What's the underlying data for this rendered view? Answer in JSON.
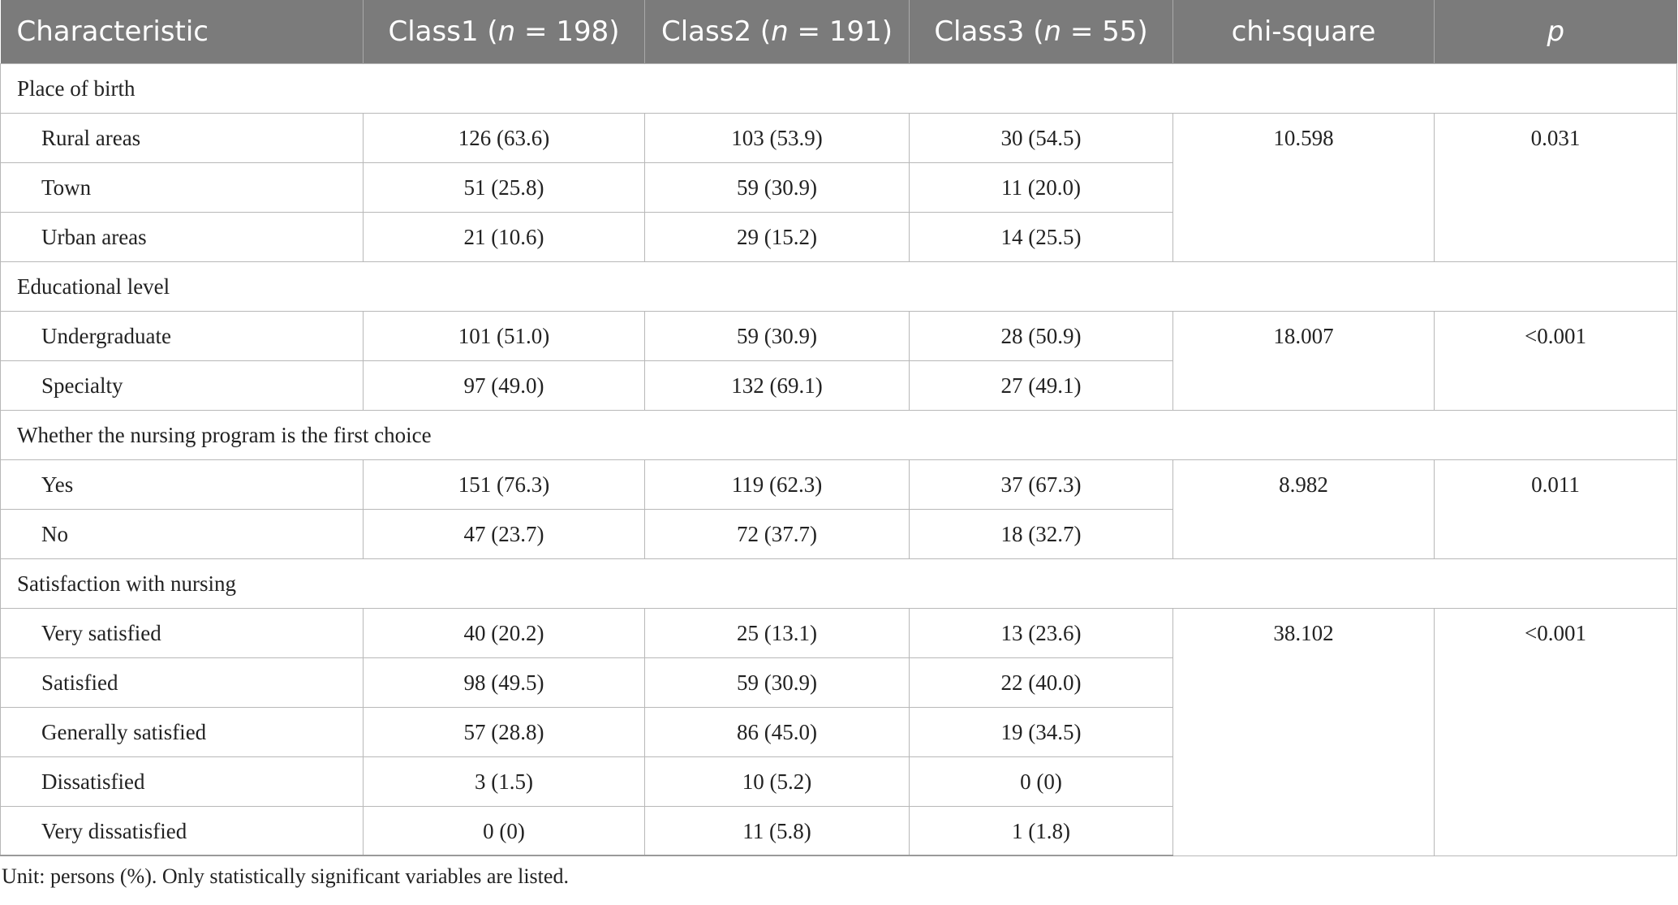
{
  "header": {
    "characteristic": "Characteristic",
    "class1_prefix": "Class1 (",
    "class1_n": "n",
    "class1_suffix": " = 198)",
    "class2_prefix": "Class2 (",
    "class2_n": "n",
    "class2_suffix": " = 191)",
    "class3_prefix": "Class3 (",
    "class3_n": "n",
    "class3_suffix": " = 55)",
    "chi_square": "chi-square",
    "p": "p"
  },
  "groups": [
    {
      "title": "Place of birth",
      "chi_square": "10.598",
      "p": "0.031",
      "rows": [
        {
          "label": "Rural areas",
          "c1": "126 (63.6)",
          "c2": "103 (53.9)",
          "c3": "30 (54.5)"
        },
        {
          "label": "Town",
          "c1": "51 (25.8)",
          "c2": "59 (30.9)",
          "c3": "11 (20.0)"
        },
        {
          "label": "Urban areas",
          "c1": "21 (10.6)",
          "c2": "29 (15.2)",
          "c3": "14 (25.5)"
        }
      ]
    },
    {
      "title": "Educational level",
      "chi_square": "18.007",
      "p": "<0.001",
      "rows": [
        {
          "label": "Undergraduate",
          "c1": "101 (51.0)",
          "c2": "59 (30.9)",
          "c3": "28 (50.9)"
        },
        {
          "label": "Specialty",
          "c1": "97 (49.0)",
          "c2": "132 (69.1)",
          "c3": "27 (49.1)"
        }
      ]
    },
    {
      "title": "Whether the nursing program is the first choice",
      "chi_square": "8.982",
      "p": "0.011",
      "rows": [
        {
          "label": "Yes",
          "c1": "151 (76.3)",
          "c2": "119 (62.3)",
          "c3": "37 (67.3)"
        },
        {
          "label": "No",
          "c1": "47 (23.7)",
          "c2": "72 (37.7)",
          "c3": "18 (32.7)"
        }
      ]
    },
    {
      "title": "Satisfaction with nursing",
      "chi_square": "38.102",
      "p": "<0.001",
      "rows": [
        {
          "label": "Very satisfied",
          "c1": "40 (20.2)",
          "c2": "25 (13.1)",
          "c3": "13 (23.6)"
        },
        {
          "label": "Satisfied",
          "c1": "98 (49.5)",
          "c2": "59 (30.9)",
          "c3": "22 (40.0)"
        },
        {
          "label": "Generally satisfied",
          "c1": "57 (28.8)",
          "c2": "86 (45.0)",
          "c3": "19 (34.5)"
        },
        {
          "label": "Dissatisfied",
          "c1": "3 (1.5)",
          "c2": "10 (5.2)",
          "c3": "0 (0)"
        },
        {
          "label": "Very dissatisfied",
          "c1": "0 (0)",
          "c2": "11 (5.8)",
          "c3": "1 (1.8)"
        }
      ]
    }
  ],
  "footnote": "Unit: persons (%). Only statistically significant variables are listed.",
  "colors": {
    "header_bg": "#7b7b7b",
    "header_text": "#ffffff",
    "border": "#b8b8b8",
    "body_text": "#222222"
  }
}
